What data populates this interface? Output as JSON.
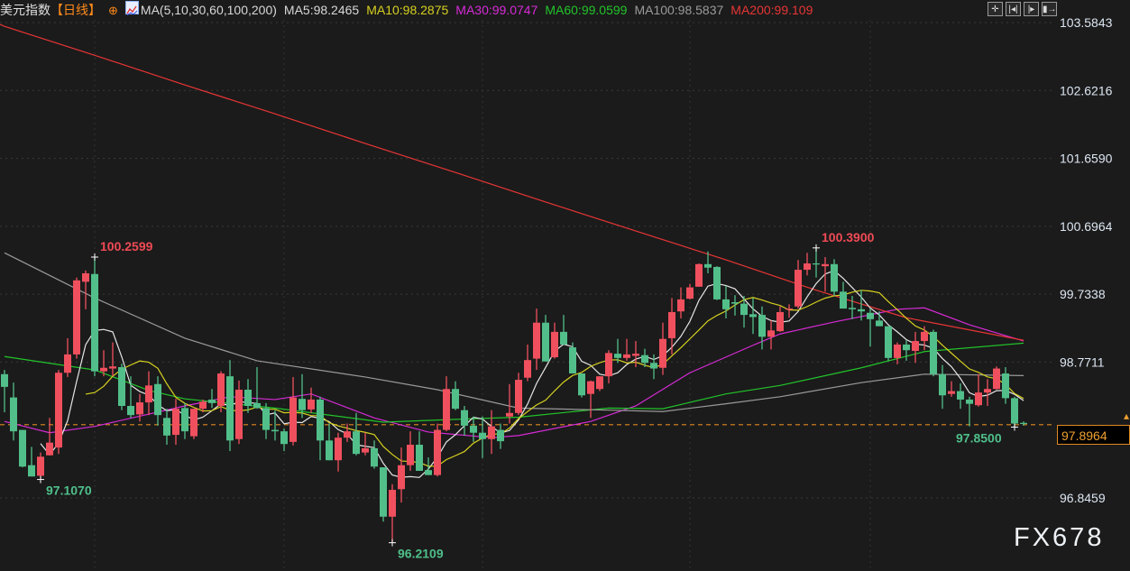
{
  "header": {
    "title": "美元指数",
    "period": "【日线】",
    "plus_icon": "circle-plus-icon",
    "ma_icon": "line-chart-icon",
    "ma_params": "MA(5,10,30,60,100,200)",
    "ma_values": [
      {
        "label": "MA5:98.2465",
        "color": "#d8d8d8"
      },
      {
        "label": "MA10:98.2875",
        "color": "#d6d020"
      },
      {
        "label": "MA30:99.0747",
        "color": "#d62bd6"
      },
      {
        "label": "MA60:99.0599",
        "color": "#22c42a"
      },
      {
        "label": "MA100:98.5837",
        "color": "#9a9a9a"
      },
      {
        "label": "MA200:99.109",
        "color": "#e83535"
      }
    ]
  },
  "toolbar": [
    {
      "icon": "crosshair-icon",
      "glyph": "✛"
    },
    {
      "icon": "zoom-range-icon",
      "glyph": "|◂|"
    },
    {
      "icon": "play-forward-icon",
      "glyph": "|▸"
    },
    {
      "icon": "exit-icon",
      "glyph": "▮→"
    }
  ],
  "watermark": "FX678",
  "colors": {
    "up": "#f0505e",
    "down": "#52bf8a",
    "background": "#1b1b1b",
    "last_price": "#f0a030"
  },
  "chart_data": {
    "type": "candlestick",
    "ylim": [
      95.81,
      103.904
    ],
    "y_ticks": [
      "103.5843",
      "102.6216",
      "101.6590",
      "100.6964",
      "99.7338",
      "98.7711",
      "96.8459"
    ],
    "grid": true,
    "last_price": "97.8964",
    "annotations": [
      {
        "text": "100.2599",
        "index": 10,
        "price": 100.2599,
        "kind": "high"
      },
      {
        "text": "97.1070",
        "index": 4,
        "price": 97.107,
        "kind": "low"
      },
      {
        "text": "96.2109",
        "index": 43,
        "price": 96.2109,
        "kind": "low"
      },
      {
        "text": "100.3900",
        "index": 90,
        "price": 100.39,
        "kind": "high"
      },
      {
        "text": "97.8500",
        "index": 112,
        "price": 97.85,
        "kind": "low"
      }
    ],
    "ohlc_order": [
      "open",
      "high",
      "low",
      "close"
    ],
    "candles": [
      [
        98.6,
        98.66,
        98.06,
        98.42
      ],
      [
        98.27,
        98.48,
        97.66,
        97.79
      ],
      [
        97.81,
        97.81,
        97.28,
        97.29
      ],
      [
        97.31,
        97.57,
        97.15,
        97.15
      ],
      [
        97.16,
        97.49,
        97.107,
        97.43
      ],
      [
        97.45,
        97.98,
        97.45,
        97.63
      ],
      [
        97.56,
        98.66,
        97.47,
        98.62
      ],
      [
        98.62,
        99.11,
        98.56,
        98.88
      ],
      [
        98.88,
        99.97,
        98.82,
        99.93
      ],
      [
        99.91,
        100.07,
        99.52,
        100.03
      ],
      [
        100.02,
        100.2599,
        98.57,
        98.64
      ],
      [
        98.64,
        98.94,
        98.57,
        98.69
      ],
      [
        98.68,
        99.05,
        98.57,
        98.71
      ],
      [
        98.7,
        98.75,
        98.09,
        98.15
      ],
      [
        98.15,
        98.57,
        97.98,
        98.02
      ],
      [
        98.03,
        98.32,
        97.93,
        98.2
      ],
      [
        98.2,
        98.64,
        98.02,
        98.44
      ],
      [
        98.46,
        98.57,
        97.87,
        98.02
      ],
      [
        97.98,
        98.11,
        97.6,
        97.73
      ],
      [
        97.74,
        98.25,
        97.6,
        98.11
      ],
      [
        98.12,
        98.19,
        97.68,
        97.79
      ],
      [
        97.72,
        98.11,
        97.68,
        98.11
      ],
      [
        98.11,
        98.24,
        98.06,
        98.21
      ],
      [
        98.24,
        98.39,
        98.12,
        98.19
      ],
      [
        98.15,
        98.64,
        98.06,
        98.61
      ],
      [
        98.57,
        98.8,
        97.51,
        97.66
      ],
      [
        97.68,
        98.51,
        97.61,
        98.38
      ],
      [
        98.38,
        98.53,
        98.05,
        98.15
      ],
      [
        98.19,
        98.7,
        98.11,
        98.12
      ],
      [
        98.12,
        98.19,
        97.68,
        97.81
      ],
      [
        97.81,
        98.09,
        97.66,
        97.79
      ],
      [
        97.79,
        97.83,
        97.51,
        97.61
      ],
      [
        97.64,
        98.56,
        97.59,
        98.27
      ],
      [
        98.25,
        98.6,
        97.98,
        98.09
      ],
      [
        98.1,
        98.41,
        98.05,
        98.24
      ],
      [
        98.24,
        98.28,
        97.38,
        97.66
      ],
      [
        97.66,
        97.9,
        97.38,
        97.38
      ],
      [
        97.38,
        97.77,
        97.22,
        97.7
      ],
      [
        97.7,
        97.9,
        97.64,
        97.79
      ],
      [
        97.79,
        98.05,
        97.45,
        97.47
      ],
      [
        97.49,
        97.77,
        97.45,
        97.55
      ],
      [
        97.55,
        97.66,
        97.26,
        97.29
      ],
      [
        97.28,
        97.28,
        96.51,
        96.58
      ],
      [
        96.58,
        97.04,
        96.2109,
        96.96
      ],
      [
        96.97,
        97.56,
        96.78,
        97.31
      ],
      [
        97.31,
        97.79,
        97.23,
        97.6
      ],
      [
        97.6,
        97.79,
        97.23,
        97.23
      ],
      [
        97.24,
        97.42,
        97.17,
        97.17
      ],
      [
        97.17,
        97.9,
        97.15,
        97.81
      ],
      [
        97.81,
        98.57,
        97.79,
        98.39
      ],
      [
        98.39,
        98.5,
        98.09,
        98.11
      ],
      [
        98.09,
        98.15,
        97.73,
        97.87
      ],
      [
        97.87,
        98.0,
        97.64,
        97.77
      ],
      [
        97.77,
        98.0,
        97.41,
        97.68
      ],
      [
        97.68,
        98.09,
        97.47,
        97.86
      ],
      [
        97.81,
        97.9,
        97.54,
        97.65
      ],
      [
        98.0,
        98.46,
        97.9,
        98.05
      ],
      [
        98.05,
        98.62,
        98.02,
        98.52
      ],
      [
        98.55,
        99.02,
        98.5,
        98.8
      ],
      [
        98.82,
        99.53,
        98.66,
        99.33
      ],
      [
        99.33,
        99.44,
        98.78,
        98.78
      ],
      [
        98.84,
        99.33,
        98.82,
        99.2
      ],
      [
        99.2,
        99.44,
        99.01,
        99.02
      ],
      [
        98.98,
        99.05,
        98.61,
        98.61
      ],
      [
        98.61,
        98.61,
        98.27,
        98.3
      ],
      [
        98.32,
        98.51,
        97.98,
        98.5
      ],
      [
        98.39,
        98.57,
        98.36,
        98.57
      ],
      [
        98.57,
        98.94,
        98.47,
        98.9
      ],
      [
        98.89,
        99.1,
        98.76,
        98.83
      ],
      [
        98.83,
        99.1,
        98.79,
        98.88
      ],
      [
        98.86,
        99.07,
        98.7,
        98.89
      ],
      [
        98.87,
        98.96,
        98.7,
        98.76
      ],
      [
        98.76,
        98.88,
        98.53,
        98.68
      ],
      [
        98.69,
        99.33,
        98.59,
        99.1
      ],
      [
        99.11,
        99.68,
        98.88,
        99.48
      ],
      [
        99.49,
        99.83,
        99.39,
        99.66
      ],
      [
        99.67,
        99.88,
        99.66,
        99.83
      ],
      [
        99.84,
        100.17,
        99.84,
        100.16
      ],
      [
        100.16,
        100.34,
        100.03,
        100.11
      ],
      [
        100.12,
        100.13,
        99.65,
        99.66
      ],
      [
        99.66,
        99.85,
        99.39,
        99.52
      ],
      [
        99.62,
        99.72,
        99.43,
        99.6
      ],
      [
        99.6,
        99.71,
        99.26,
        99.44
      ],
      [
        99.45,
        99.68,
        99.17,
        99.41
      ],
      [
        99.44,
        99.56,
        98.95,
        99.13
      ],
      [
        99.13,
        99.36,
        98.95,
        99.22
      ],
      [
        99.21,
        99.56,
        99.2,
        99.48
      ],
      [
        99.52,
        99.59,
        99.4,
        99.53
      ],
      [
        99.56,
        100.22,
        99.53,
        100.08
      ],
      [
        100.08,
        100.32,
        100.0,
        100.17
      ],
      [
        100.17,
        100.39,
        99.97,
        100.16
      ],
      [
        100.13,
        100.26,
        99.77,
        100.16
      ],
      [
        100.16,
        100.23,
        99.71,
        99.77
      ],
      [
        99.77,
        99.91,
        99.53,
        99.53
      ],
      [
        99.54,
        99.71,
        99.38,
        99.52
      ],
      [
        99.52,
        99.79,
        99.36,
        99.49
      ],
      [
        99.47,
        99.53,
        98.99,
        99.38
      ],
      [
        99.36,
        99.49,
        99.28,
        99.28
      ],
      [
        99.28,
        99.28,
        98.79,
        98.83
      ],
      [
        98.83,
        99.05,
        98.74,
        99.02
      ],
      [
        99.02,
        99.08,
        98.79,
        98.94
      ],
      [
        98.93,
        99.2,
        98.76,
        99.07
      ],
      [
        99.07,
        99.28,
        98.94,
        99.2
      ],
      [
        99.2,
        99.23,
        98.57,
        98.6
      ],
      [
        98.6,
        98.73,
        98.11,
        98.3
      ],
      [
        98.32,
        98.5,
        98.28,
        98.36
      ],
      [
        98.36,
        98.47,
        98.11,
        98.24
      ],
      [
        98.24,
        98.28,
        97.86,
        98.18
      ],
      [
        98.16,
        98.6,
        98.14,
        98.34
      ],
      [
        98.34,
        98.53,
        98.15,
        98.39
      ],
      [
        98.39,
        98.71,
        98.38,
        98.68
      ],
      [
        98.61,
        98.7,
        98.18,
        98.26
      ],
      [
        98.26,
        98.28,
        97.85,
        97.9
      ],
      [
        97.91,
        97.93,
        97.87,
        97.8964
      ]
    ],
    "ma_lines": [
      {
        "name": "MA30",
        "color": "#d62bd6",
        "points": [
          [
            0,
            97.93
          ],
          [
            5,
            97.77
          ],
          [
            10,
            97.86
          ],
          [
            20,
            98.15
          ],
          [
            25,
            98.28
          ],
          [
            30,
            98.24
          ],
          [
            34,
            98.32
          ],
          [
            41,
            97.98
          ],
          [
            47,
            97.78
          ],
          [
            54,
            97.7
          ],
          [
            57,
            97.73
          ],
          [
            65,
            97.93
          ],
          [
            70,
            98.15
          ],
          [
            76,
            98.62
          ],
          [
            83,
            99.01
          ],
          [
            86,
            99.17
          ],
          [
            92,
            99.34
          ],
          [
            99,
            99.52
          ],
          [
            102,
            99.54
          ],
          [
            107,
            99.3
          ],
          [
            113,
            99.07
          ]
        ]
      },
      {
        "name": "MA60",
        "color": "#22c42a",
        "points": [
          [
            0,
            98.85
          ],
          [
            10,
            98.66
          ],
          [
            16,
            98.37
          ],
          [
            20,
            98.25
          ],
          [
            30,
            98.12
          ],
          [
            42,
            97.92
          ],
          [
            50,
            97.96
          ],
          [
            57,
            97.99
          ],
          [
            67,
            98.12
          ],
          [
            73,
            98.11
          ],
          [
            80,
            98.32
          ],
          [
            86,
            98.44
          ],
          [
            95,
            98.69
          ],
          [
            102,
            98.92
          ],
          [
            113,
            99.04
          ]
        ]
      },
      {
        "name": "MA100",
        "color": "#9a9a9a",
        "points": [
          [
            0,
            100.32
          ],
          [
            10,
            99.68
          ],
          [
            20,
            99.11
          ],
          [
            28,
            98.79
          ],
          [
            40,
            98.56
          ],
          [
            48,
            98.38
          ],
          [
            57,
            98.12
          ],
          [
            67,
            98.09
          ],
          [
            73,
            98.07
          ],
          [
            80,
            98.18
          ],
          [
            86,
            98.28
          ],
          [
            95,
            98.48
          ],
          [
            102,
            98.6
          ],
          [
            113,
            98.58
          ]
        ]
      },
      {
        "name": "MA200",
        "color": "#e83535",
        "points": [
          [
            -0.5,
            103.56
          ],
          [
            0,
            103.53
          ],
          [
            10,
            103.12
          ],
          [
            20,
            102.7
          ],
          [
            30,
            102.29
          ],
          [
            40,
            101.87
          ],
          [
            50,
            101.46
          ],
          [
            60,
            101.04
          ],
          [
            70,
            100.63
          ],
          [
            80,
            100.22
          ],
          [
            90,
            99.79
          ],
          [
            100,
            99.4
          ],
          [
            113,
            99.08
          ]
        ]
      }
    ],
    "computed_ma": [
      {
        "name": "MA5",
        "period": 5,
        "color": "#e6e6e6"
      },
      {
        "name": "MA10",
        "period": 10,
        "color": "#d6d020"
      }
    ]
  }
}
